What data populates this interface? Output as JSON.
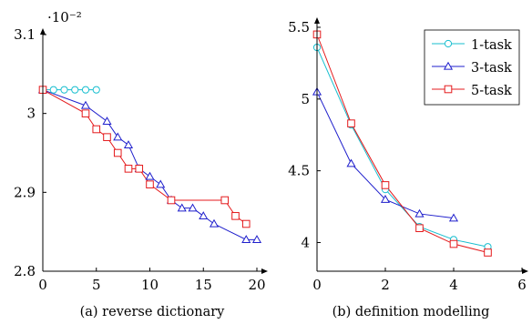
{
  "chart_data": [
    {
      "type": "line",
      "caption": "(a) reverse dictionary",
      "exponent_label": "·10⁻²",
      "xlim": [
        0,
        20
      ],
      "ylim": [
        2.8,
        3.1
      ],
      "xticks": [
        0,
        5,
        10,
        15,
        20
      ],
      "xtick_labels": [
        "0",
        "5",
        "10",
        "15",
        "20"
      ],
      "yticks": [
        2.8,
        2.9,
        3.0,
        3.1
      ],
      "ytick_labels": [
        "2.8",
        "2.9",
        "3",
        "3.1"
      ],
      "series": [
        {
          "name": "1-task",
          "color": "#17becf",
          "marker": "circle",
          "points": [
            [
              0,
              3.03
            ],
            [
              1,
              3.03
            ],
            [
              2,
              3.03
            ],
            [
              3,
              3.03
            ],
            [
              4,
              3.03
            ],
            [
              5,
              3.03
            ]
          ]
        },
        {
          "name": "3-task",
          "color": "#1f1fcc",
          "marker": "triangle",
          "points": [
            [
              0,
              3.03
            ],
            [
              4,
              3.01
            ],
            [
              6,
              2.99
            ],
            [
              7,
              2.97
            ],
            [
              8,
              2.96
            ],
            [
              9,
              2.93
            ],
            [
              10,
              2.92
            ],
            [
              11,
              2.91
            ],
            [
              12,
              2.89
            ],
            [
              13,
              2.88
            ],
            [
              14,
              2.88
            ],
            [
              15,
              2.87
            ],
            [
              16,
              2.86
            ],
            [
              19,
              2.84
            ],
            [
              20,
              2.84
            ]
          ]
        },
        {
          "name": "5-task",
          "color": "#e41a1c",
          "marker": "square",
          "points": [
            [
              0,
              3.03
            ],
            [
              4,
              3.0
            ],
            [
              5,
              2.98
            ],
            [
              6,
              2.97
            ],
            [
              7,
              2.95
            ],
            [
              8,
              2.93
            ],
            [
              9,
              2.93
            ],
            [
              10,
              2.91
            ],
            [
              12,
              2.89
            ],
            [
              17,
              2.89
            ],
            [
              18,
              2.87
            ],
            [
              19,
              2.86
            ]
          ]
        }
      ]
    },
    {
      "type": "line",
      "caption": "(b) definition modelling",
      "xlim": [
        0,
        6
      ],
      "ylim": [
        3.8,
        5.5
      ],
      "xticks": [
        0,
        2,
        4,
        6
      ],
      "xtick_labels": [
        "0",
        "2",
        "4",
        "6"
      ],
      "yticks": [
        4.0,
        4.5,
        5.0,
        5.5
      ],
      "ytick_labels": [
        "4",
        "4.5",
        "5",
        "5.5"
      ],
      "legend": {
        "position": "top-right",
        "entries": [
          "1-task",
          "3-task",
          "5-task"
        ]
      },
      "series": [
        {
          "name": "1-task",
          "color": "#17becf",
          "marker": "circle",
          "points": [
            [
              0,
              5.36
            ],
            [
              1,
              4.82
            ],
            [
              2,
              4.37
            ],
            [
              3,
              4.11
            ],
            [
              4,
              4.02
            ],
            [
              5,
              3.97
            ]
          ]
        },
        {
          "name": "3-task",
          "color": "#1f1fcc",
          "marker": "triangle",
          "points": [
            [
              0,
              5.05
            ],
            [
              1,
              4.55
            ],
            [
              2,
              4.3
            ],
            [
              3,
              4.2
            ],
            [
              4,
              4.17
            ]
          ]
        },
        {
          "name": "5-task",
          "color": "#e41a1c",
          "marker": "square",
          "points": [
            [
              0,
              5.45
            ],
            [
              1,
              4.83
            ],
            [
              2,
              4.4
            ],
            [
              3,
              4.1
            ],
            [
              4,
              3.99
            ],
            [
              5,
              3.93
            ]
          ]
        }
      ]
    }
  ]
}
